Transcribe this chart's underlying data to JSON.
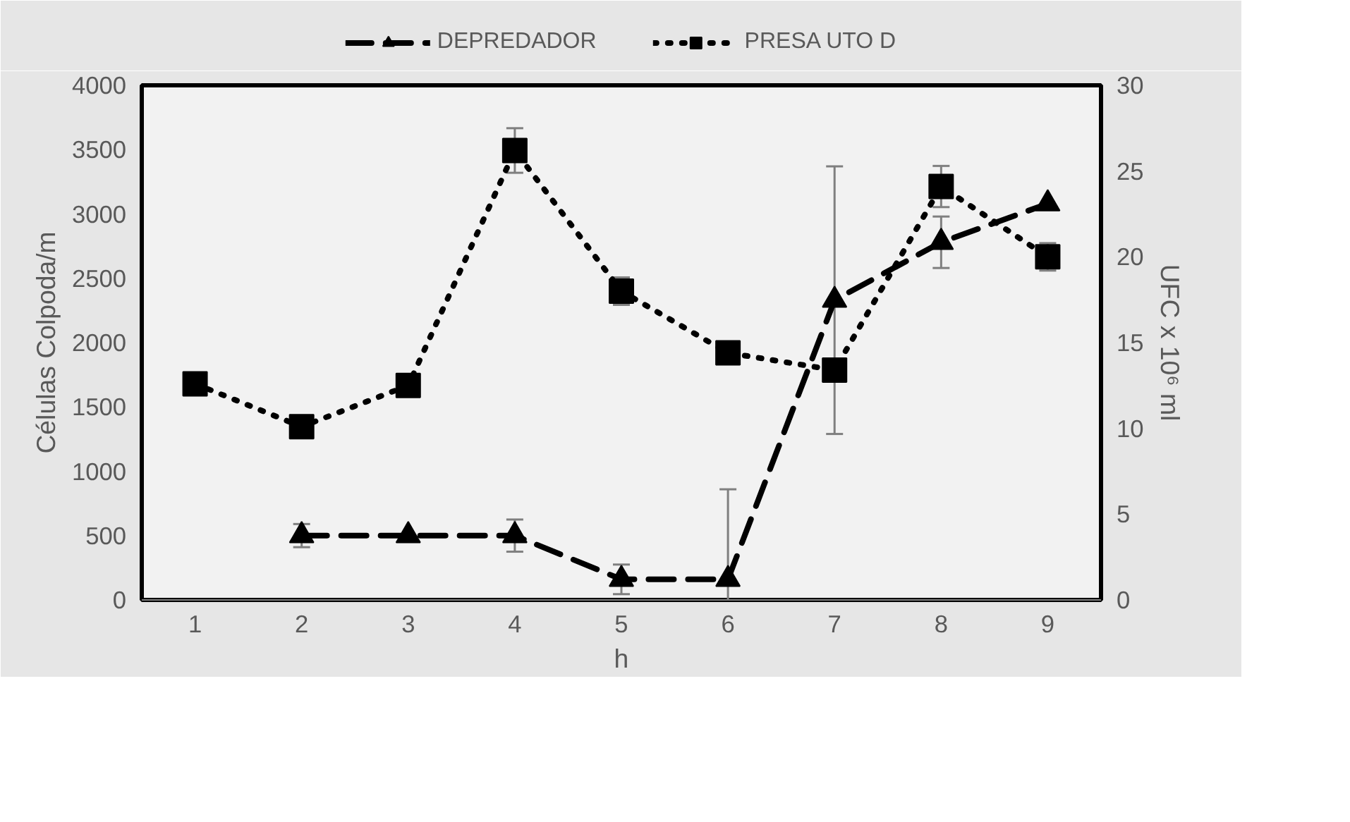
{
  "chart_data": {
    "type": "line",
    "xlabel": "h",
    "ylabel": "Células Colpoda/m",
    "y2label": "UFC x 10⁶ ml",
    "x": [
      1,
      2,
      3,
      4,
      5,
      6,
      7,
      8,
      9
    ],
    "xlim": [
      0.5,
      9.5
    ],
    "xticks": [
      1,
      2,
      3,
      4,
      5,
      6,
      7,
      8,
      9
    ],
    "ylim": [
      0,
      4000
    ],
    "yticks": [
      0,
      500,
      1000,
      1500,
      2000,
      2500,
      3000,
      3500,
      4000
    ],
    "y2lim": [
      0,
      30
    ],
    "y2ticks": [
      0,
      5,
      10,
      15,
      20,
      25,
      30
    ],
    "legend": "top",
    "grid": false,
    "series": [
      {
        "name": "DEPREDADOR",
        "color": "#000000",
        "marker": "triangle",
        "line_style": "dashed",
        "values": [
          null,
          500,
          500,
          500,
          160,
          160,
          2330,
          2780,
          3080
        ],
        "errors": [
          null,
          90,
          null,
          125,
          115,
          700,
          1040,
          200,
          null
        ]
      },
      {
        "name": "PRESA UTO D",
        "color": "#000000",
        "marker": "square",
        "line_style": "dotted",
        "axis": "y2",
        "values": [
          12.6,
          10.1,
          12.5,
          26.2,
          18,
          14.4,
          13.4,
          24.1,
          20
        ],
        "errors": [
          null,
          null,
          null,
          1.3,
          0.8,
          null,
          null,
          1.2,
          0.8
        ]
      }
    ]
  }
}
